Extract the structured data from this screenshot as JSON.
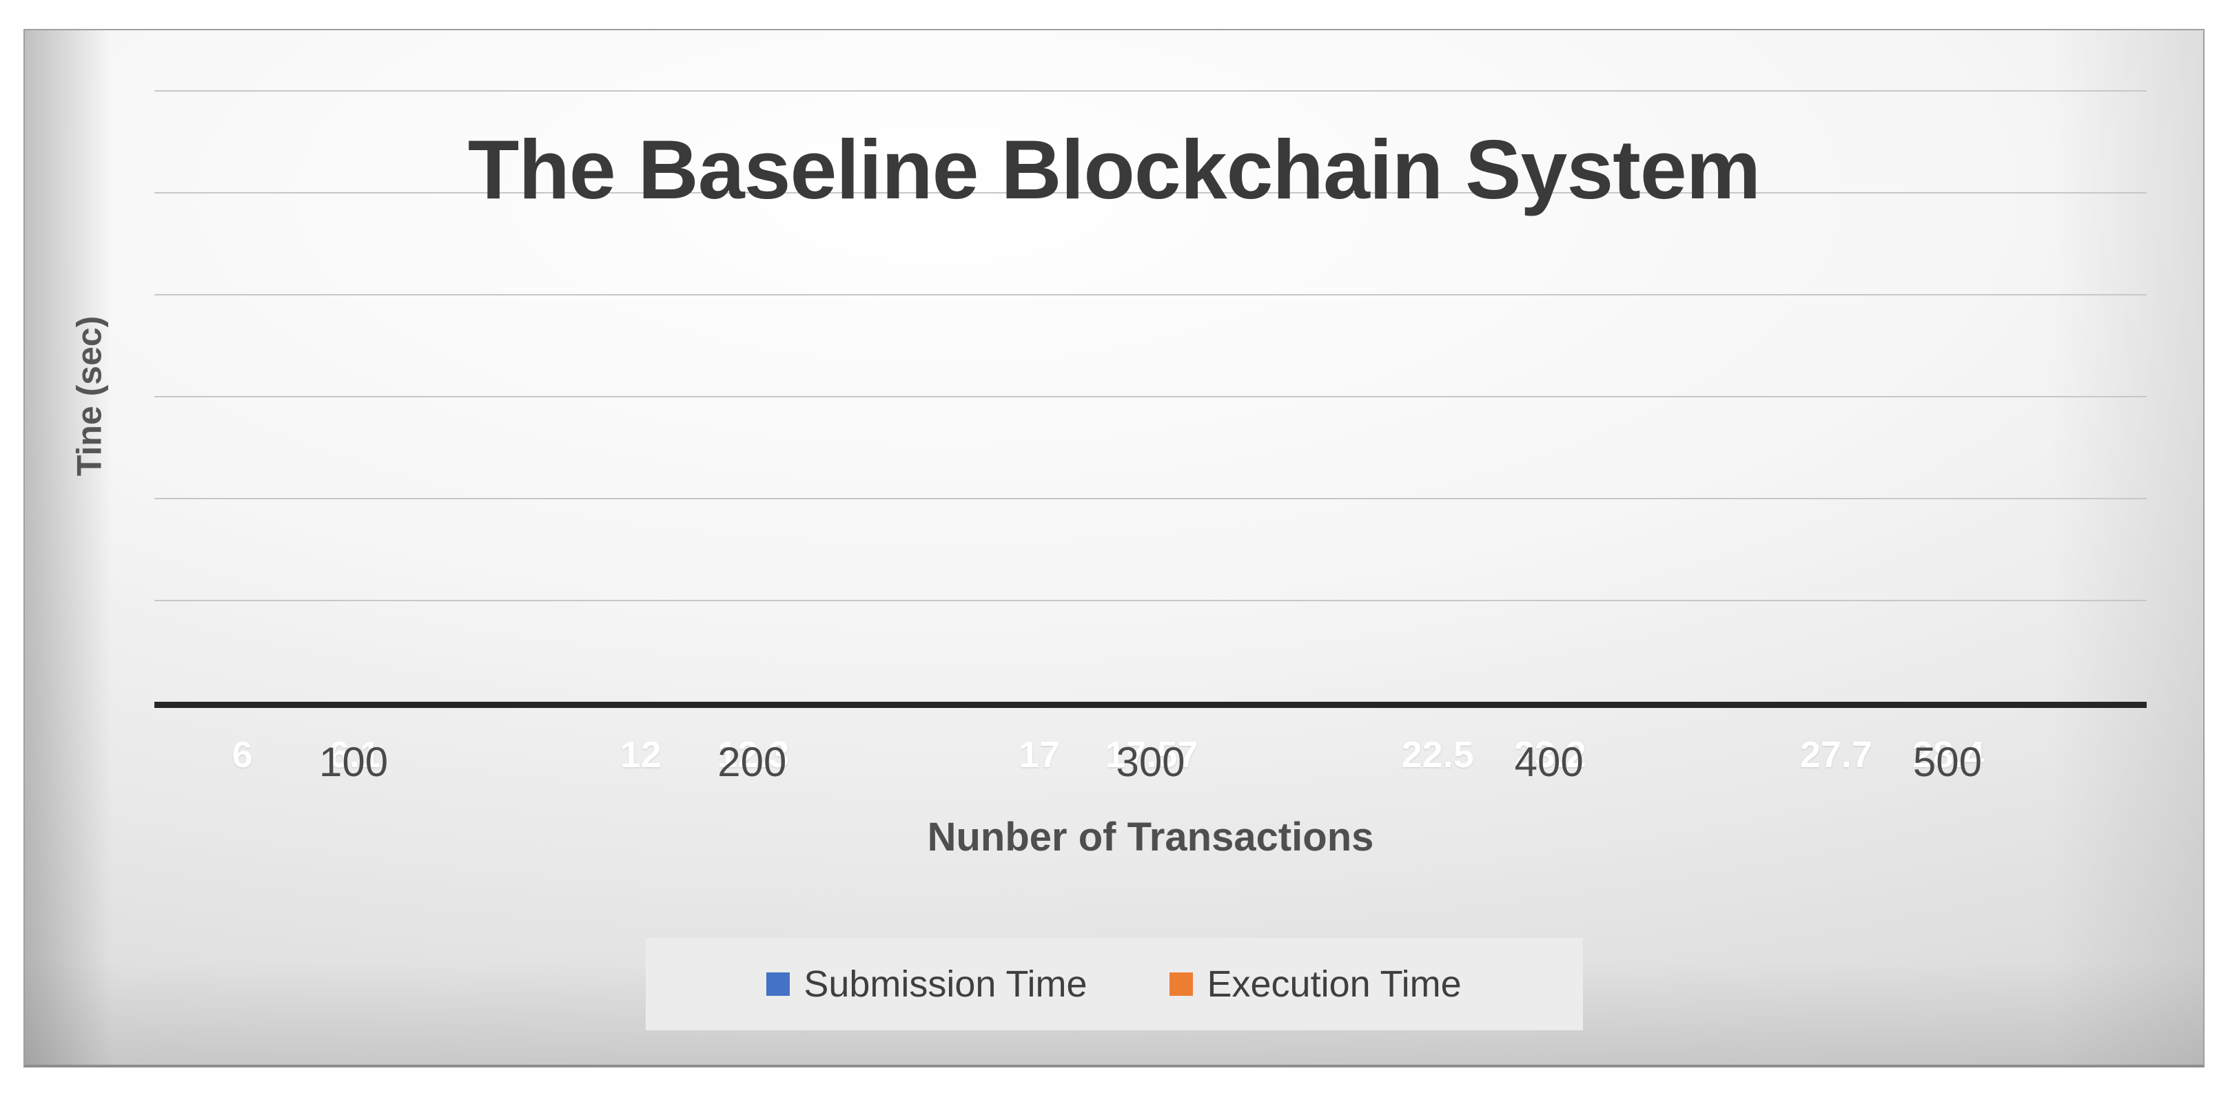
{
  "chart_data": {
    "type": "bar",
    "title": "The Baseline Blockchain System",
    "xlabel": "Nunber of Transactions",
    "ylabel": "Tine (sec)",
    "categories": [
      "100",
      "200",
      "300",
      "400",
      "500"
    ],
    "series": [
      {
        "name": "Submission Time",
        "color": "#4472C4",
        "values": [
          6,
          12,
          17,
          22.5,
          27.7
        ],
        "data_labels": [
          "6",
          "12",
          "17",
          "22.5",
          "27.7"
        ]
      },
      {
        "name": "Execution Time",
        "color": "#ED7D31",
        "values": [
          6.1,
          12.3,
          17.57,
          23.2,
          28.4
        ],
        "data_labels": [
          "6.1",
          "12.3",
          "17.57",
          "23.2",
          "28.4"
        ]
      }
    ],
    "ylim": [
      0,
      30
    ],
    "y_gridline_step": 5,
    "y_tick_labels_visible": false,
    "grid": true,
    "legend_position": "bottom",
    "data_label_color": "#ffffff"
  },
  "colors": {
    "series_blue": "#4472C4",
    "series_orange": "#ED7D31",
    "title_text": "#3a3a3a",
    "axis_line": "#262626",
    "gridline": "#c7c7c7",
    "axis_text": "#4a4a4a",
    "legend_background": "#ececec",
    "data_label_text": "#ffffff"
  }
}
